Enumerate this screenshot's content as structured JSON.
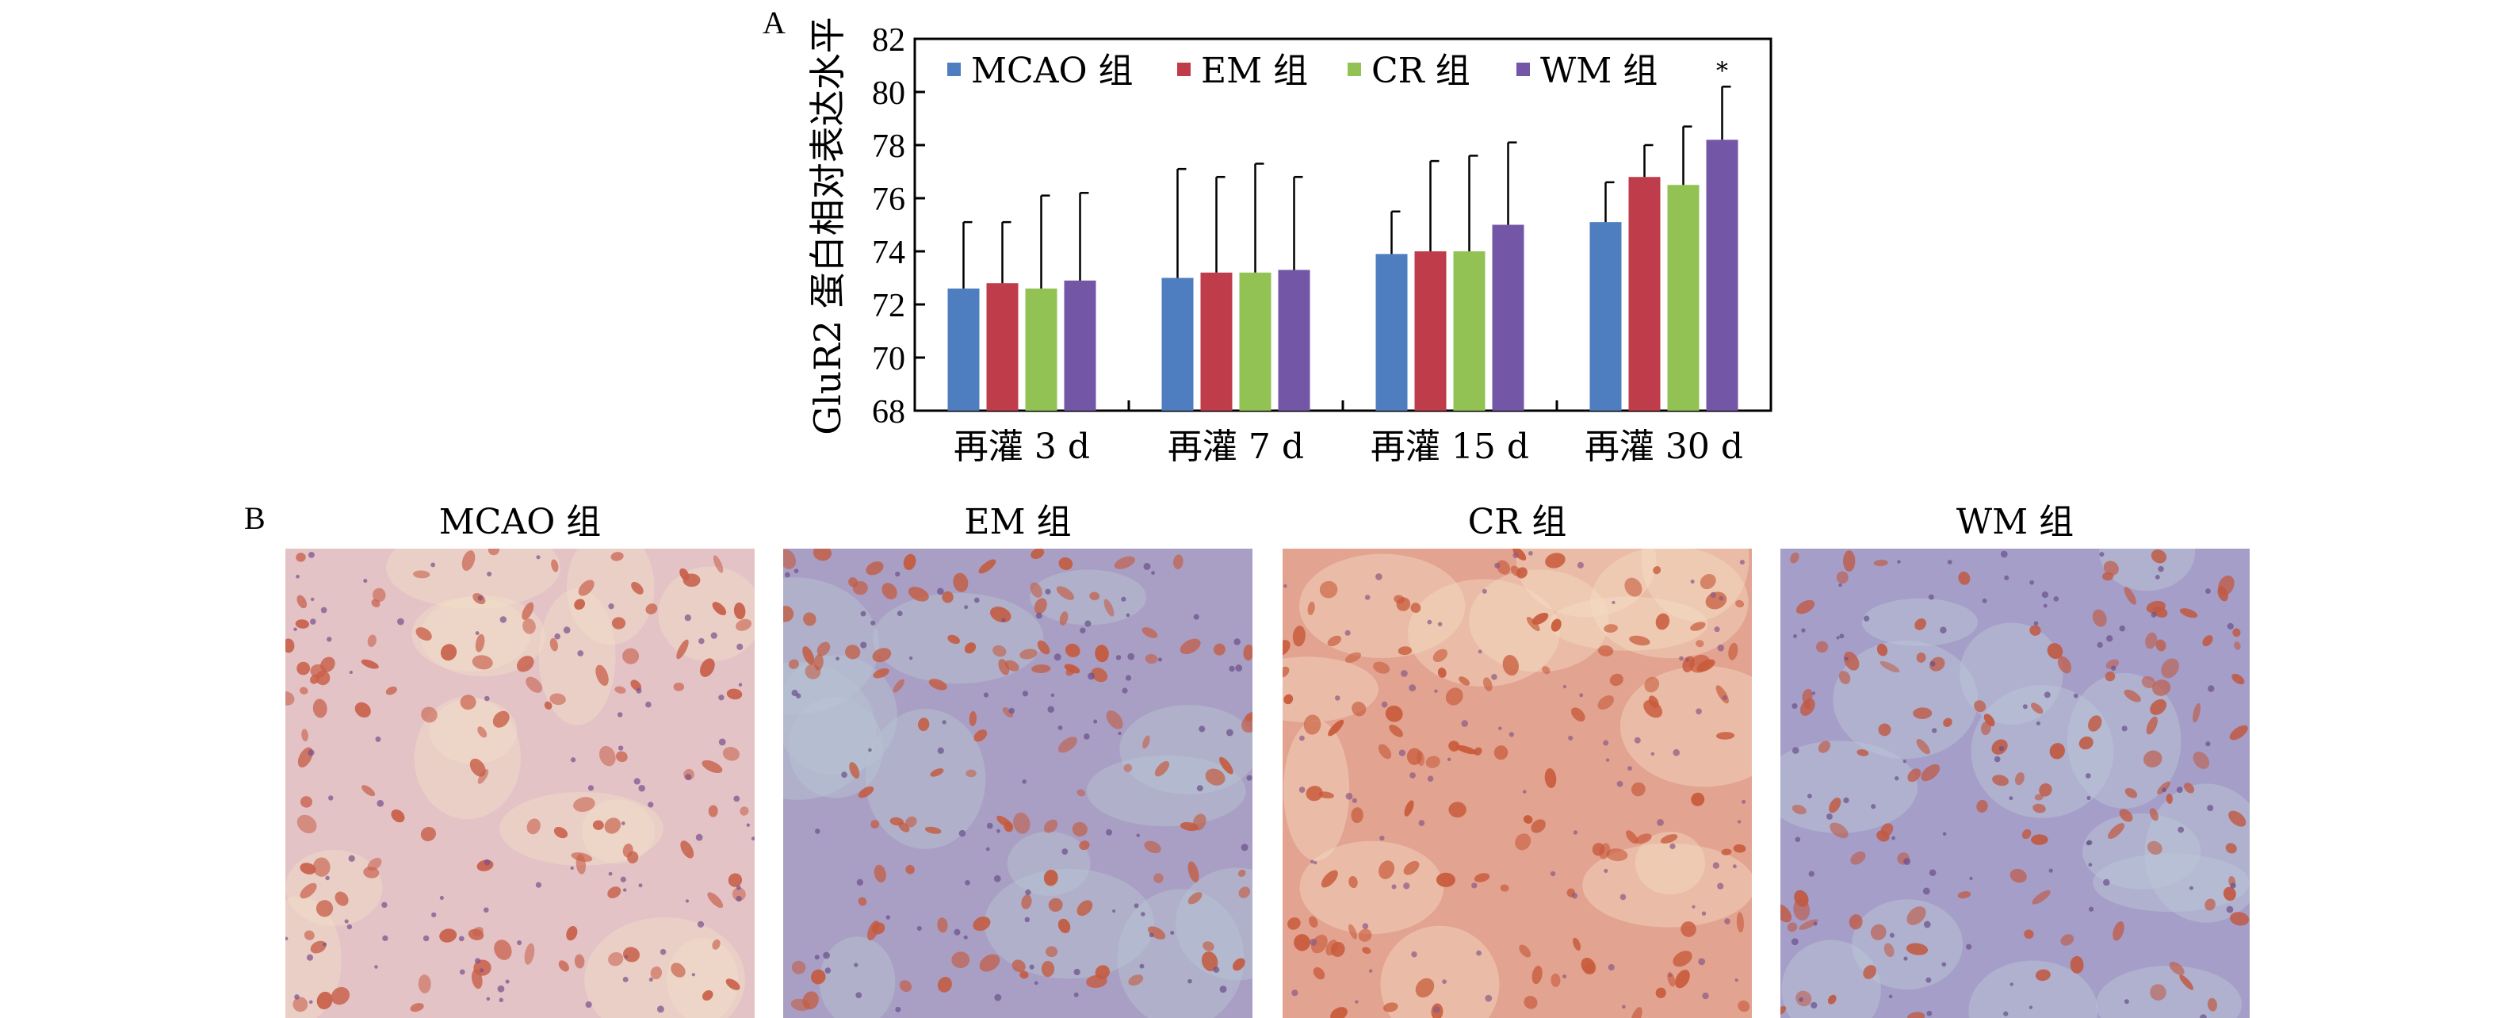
{
  "panel_a_label": "A",
  "panel_b_label": "B",
  "chart_data": {
    "type": "bar",
    "title": "",
    "xlabel": "",
    "ylabel": "GluR2 蛋白相对表达水平",
    "ylim": [
      68,
      82
    ],
    "yticks": [
      68,
      70,
      72,
      74,
      76,
      78,
      80,
      82
    ],
    "categories": [
      "再灌 3 d",
      "再灌 7 d",
      "再灌 15 d",
      "再灌 30 d"
    ],
    "legend_position": "top-left",
    "grid": false,
    "series": [
      {
        "name": "MCAO 组",
        "color": "#4f7ec0",
        "values": [
          72.6,
          73.0,
          73.9,
          75.1
        ],
        "errors": [
          2.5,
          4.1,
          1.6,
          1.5
        ]
      },
      {
        "name": "EM 组",
        "color": "#bf3c4a",
        "values": [
          72.8,
          73.2,
          74.0,
          76.8
        ],
        "errors": [
          2.3,
          3.6,
          3.4,
          1.2
        ]
      },
      {
        "name": "CR 组",
        "color": "#92c254",
        "values": [
          72.6,
          73.2,
          74.0,
          76.5
        ],
        "errors": [
          3.5,
          4.1,
          3.6,
          2.2
        ]
      },
      {
        "name": "WM 组",
        "color": "#7356a6",
        "values": [
          72.9,
          73.3,
          75.0,
          78.2
        ],
        "errors": [
          3.3,
          3.5,
          3.1,
          2.0
        ]
      }
    ],
    "annotations": [
      {
        "category": "再灌 30 d",
        "series": "WM 组",
        "text": "*"
      }
    ]
  },
  "micrographs": [
    {
      "title": "MCAO 组",
      "base": "#e3c3c6",
      "tint": "#f1ddc8",
      "cell": "#c8604a",
      "dot": "#7a4f8c"
    },
    {
      "title": "EM 组",
      "base": "#a99fc4",
      "tint": "#b9c6d2",
      "cell": "#c45a3e",
      "dot": "#6a4e8a"
    },
    {
      "title": "CR 组",
      "base": "#e2a391",
      "tint": "#f4dcc4",
      "cell": "#c85a3a",
      "dot": "#8a5a86"
    },
    {
      "title": "WM 组",
      "base": "#a59ec8",
      "tint": "#bcc8d6",
      "cell": "#c05a44",
      "dot": "#6a4e8a"
    }
  ]
}
